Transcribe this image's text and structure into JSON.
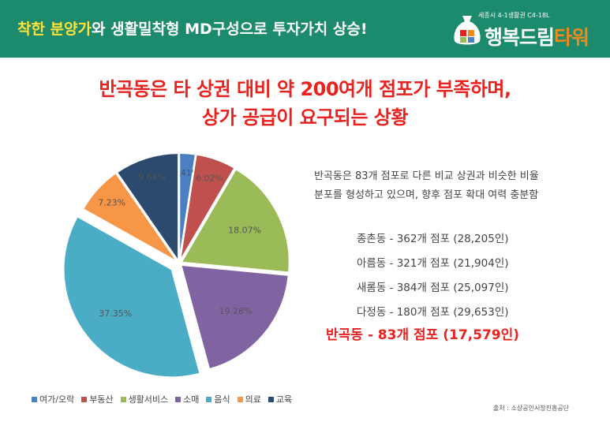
{
  "header": {
    "title_highlight": "착한 분양가",
    "title_rest": "와 생활밀착형 MD구성으로 투자가치 상승!",
    "logo_subtext": "세종시 4-1생활권 C4-18L",
    "logo_name_main": "행복드림",
    "logo_name_accent": "타워"
  },
  "headline": {
    "line1": "반곡동은 타 상권 대비 약 200여개 점포가 부족하며,",
    "line2": "상가 공급이 요구되는 상황"
  },
  "description": {
    "line1": "반곡동은 83개 점포로 다른 비교 상권과 비슷한 비율",
    "line2": "분포를 형성하고 있으며, 향후 점포 확대 여력 충분함"
  },
  "stats": [
    {
      "text": "종촌동  -  362개 점포 (28,205인)"
    },
    {
      "text": "아름동  -  321개 점포 (21,904인)"
    },
    {
      "text": "새롬동  -  384개 점포 (25,097인)"
    },
    {
      "text": "다정동  -  180개 점포 (29,653인)"
    }
  ],
  "highlight_stat": "반곡동  -  83개 점포 (17,579인)",
  "source": "출처 : 소상공인시장진흥공단",
  "chart_data": {
    "type": "pie",
    "categories": [
      "여가/오락",
      "부동산",
      "생활서비스",
      "소매",
      "음식",
      "의료",
      "교육"
    ],
    "values": [
      2.41,
      6.02,
      18.07,
      19.28,
      37.35,
      7.23,
      9.64
    ],
    "labels": [
      "2.41%",
      "6.02%",
      "18.07%",
      "19.28%",
      "37.35%",
      "7.23%",
      "9.64%"
    ],
    "colors": [
      "#4a7fc1",
      "#c0504d",
      "#9bbb59",
      "#8064a2",
      "#4bacc6",
      "#f79646",
      "#2c4a6e"
    ],
    "exploded": [
      false,
      false,
      false,
      false,
      true,
      false,
      false
    ],
    "legend_position": "bottom"
  }
}
